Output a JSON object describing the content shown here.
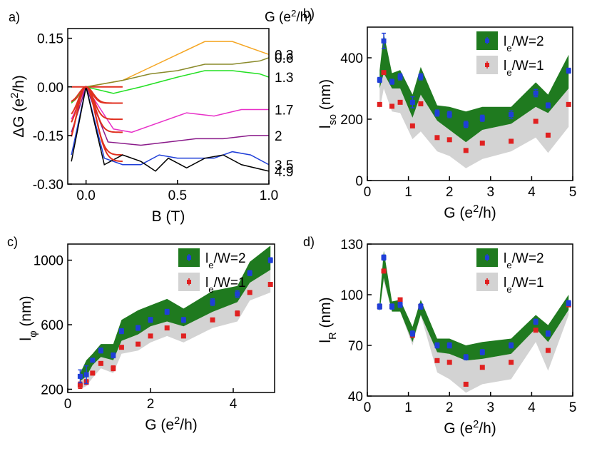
{
  "chart_data": [
    {
      "panel": "a",
      "panel_label": "a)",
      "type": "line",
      "xlabel": "B (T)",
      "ylabel": "ΔG (e2/h)",
      "series_header": "G (e2/h)",
      "xlim": [
        -0.1,
        1.0
      ],
      "ylim": [
        -0.3,
        0.18
      ],
      "xticks": [
        "0.0",
        "0.5",
        "1.0"
      ],
      "xtick_values": [
        0.0,
        0.5,
        1.0
      ],
      "yticks": [
        "0.15",
        "0.00",
        "-0.15",
        "-0.30"
      ],
      "ytick_values": [
        0.15,
        0.0,
        -0.15,
        -0.3
      ],
      "series": [
        {
          "name": "0.3",
          "color": "#f5a623",
          "x": [
            -0.08,
            0.0,
            0.2,
            0.35,
            0.5,
            0.65,
            0.8,
            0.95,
            1.0
          ],
          "y": [
            0.0,
            0.0,
            0.02,
            0.06,
            0.1,
            0.14,
            0.14,
            0.11,
            0.1
          ]
        },
        {
          "name": "0.6",
          "color": "#8a8a2a",
          "x": [
            -0.08,
            0.0,
            0.2,
            0.35,
            0.5,
            0.65,
            0.8,
            0.95,
            1.0
          ],
          "y": [
            -0.05,
            0.0,
            0.02,
            0.04,
            0.05,
            0.07,
            0.07,
            0.08,
            0.09
          ]
        },
        {
          "name": "1.3",
          "color": "#22e022",
          "x": [
            -0.08,
            0.0,
            0.15,
            0.3,
            0.5,
            0.65,
            0.8,
            0.95,
            1.0
          ],
          "y": [
            -0.05,
            0.0,
            -0.02,
            0.0,
            0.03,
            0.05,
            0.05,
            0.04,
            0.03
          ]
        },
        {
          "name": "1.7",
          "color": "#e830c8",
          "x": [
            -0.08,
            0.0,
            0.15,
            0.25,
            0.4,
            0.55,
            0.7,
            0.85,
            1.0
          ],
          "y": [
            -0.1,
            0.0,
            -0.13,
            -0.14,
            -0.11,
            -0.08,
            -0.09,
            -0.07,
            -0.07
          ]
        },
        {
          "name": "2",
          "color": "#8a1a8a",
          "x": [
            -0.08,
            0.0,
            0.12,
            0.3,
            0.45,
            0.6,
            0.75,
            0.9,
            1.0
          ],
          "y": [
            -0.14,
            0.0,
            -0.17,
            -0.18,
            -0.17,
            -0.16,
            -0.16,
            -0.15,
            -0.15
          ]
        },
        {
          "name": "3.5",
          "color": "#1f3fd8",
          "x": [
            -0.08,
            0.0,
            0.1,
            0.2,
            0.3,
            0.4,
            0.5,
            0.6,
            0.7,
            0.8,
            0.9,
            1.0
          ],
          "y": [
            -0.21,
            0.0,
            -0.22,
            -0.24,
            -0.24,
            -0.21,
            -0.22,
            -0.22,
            -0.22,
            -0.2,
            -0.21,
            -0.24
          ]
        },
        {
          "name": "4.9",
          "color": "#000000",
          "x": [
            -0.08,
            0.0,
            0.1,
            0.2,
            0.3,
            0.38,
            0.45,
            0.55,
            0.65,
            0.75,
            0.85,
            1.0
          ],
          "y": [
            -0.23,
            0.0,
            -0.24,
            -0.21,
            -0.23,
            -0.26,
            -0.22,
            -0.25,
            -0.22,
            -0.21,
            -0.24,
            -0.26
          ]
        }
      ],
      "fit_color": "#e03020"
    },
    {
      "panel": "b",
      "panel_label": "b)",
      "type": "scatter",
      "xlabel": "G (e2/h)",
      "ylabel": "lso (nm)",
      "xlim": [
        0,
        5
      ],
      "ylim": [
        0,
        500
      ],
      "xticks": [
        "0",
        "1",
        "2",
        "3",
        "4",
        "5"
      ],
      "xtick_values": [
        0,
        1,
        2,
        3,
        4,
        5
      ],
      "yticks": [
        "0",
        "200",
        "400"
      ],
      "ytick_values": [
        0,
        200,
        400
      ],
      "legend": [
        "le/W=2",
        "le/W=1"
      ],
      "x": [
        0.3,
        0.4,
        0.6,
        0.8,
        1.1,
        1.3,
        1.7,
        2.0,
        2.4,
        2.8,
        3.5,
        4.1,
        4.4,
        4.9
      ],
      "series": [
        {
          "name": "le/W=2",
          "values": [
            328,
            455,
            322,
            338,
            255,
            338,
            220,
            215,
            183,
            203,
            215,
            285,
            245,
            358
          ],
          "errors": [
            8,
            25,
            8,
            10,
            18,
            10,
            10,
            10,
            10,
            10,
            12,
            12,
            8,
            8
          ],
          "band_low": [
            300,
            350,
            300,
            300,
            205,
            280,
            195,
            165,
            125,
            165,
            185,
            240,
            220,
            300
          ],
          "band_high": [
            360,
            480,
            350,
            360,
            280,
            370,
            245,
            240,
            225,
            240,
            240,
            320,
            280,
            410
          ]
        },
        {
          "name": "le/W=1",
          "values": [
            248,
            352,
            242,
            255,
            178,
            250,
            140,
            133,
            98,
            122,
            128,
            193,
            148,
            248
          ],
          "errors": [
            5,
            5,
            5,
            5,
            5,
            5,
            5,
            5,
            5,
            5,
            5,
            5,
            5,
            5
          ],
          "band_low": [
            230,
            300,
            225,
            220,
            135,
            160,
            95,
            80,
            40,
            70,
            95,
            140,
            90,
            175
          ]
        }
      ]
    },
    {
      "panel": "c",
      "panel_label": "c)",
      "type": "scatter",
      "xlabel": "G (e2/h)",
      "ylabel": "lφ (nm)",
      "xlim": [
        0,
        5
      ],
      "ylim": [
        180,
        1100
      ],
      "xticks": [
        "0",
        "2",
        "4"
      ],
      "xtick_values": [
        0,
        2,
        4
      ],
      "yticks": [
        "200",
        "600",
        "1000"
      ],
      "ytick_values": [
        200,
        600,
        1000
      ],
      "legend": [
        "le/W=2",
        "le/W=1"
      ],
      "x": [
        0.3,
        0.45,
        0.6,
        0.8,
        1.1,
        1.3,
        1.7,
        2.0,
        2.4,
        2.8,
        3.5,
        4.1,
        4.4,
        4.9
      ],
      "series": [
        {
          "name": "le/W=2",
          "values": [
            280,
            290,
            380,
            440,
            410,
            560,
            580,
            630,
            680,
            630,
            740,
            790,
            920,
            1000
          ],
          "errors": [
            40,
            55,
            10,
            15,
            15,
            15,
            15,
            15,
            15,
            15,
            20,
            20,
            15,
            15
          ],
          "band_low": [
            250,
            280,
            350,
            400,
            380,
            500,
            540,
            590,
            620,
            590,
            680,
            740,
            860,
            940
          ],
          "band_high": [
            300,
            380,
            420,
            480,
            480,
            630,
            690,
            720,
            760,
            700,
            810,
            840,
            990,
            1090
          ]
        },
        {
          "name": "le/W=1",
          "values": [
            225,
            245,
            300,
            360,
            330,
            460,
            480,
            530,
            580,
            530,
            630,
            670,
            800,
            850
          ],
          "errors": [
            20,
            15,
            10,
            10,
            15,
            10,
            10,
            10,
            10,
            10,
            10,
            15,
            10,
            10
          ],
          "band_low": [
            200,
            220,
            270,
            330,
            300,
            420,
            440,
            490,
            530,
            490,
            580,
            620,
            750,
            800
          ]
        }
      ]
    },
    {
      "panel": "d",
      "panel_label": "d)",
      "type": "scatter",
      "xlabel": "G (e2/h)",
      "ylabel": "lR (nm)",
      "xlim": [
        0,
        5
      ],
      "ylim": [
        40,
        130
      ],
      "xticks": [
        "0",
        "1",
        "2",
        "3",
        "4",
        "5"
      ],
      "xtick_values": [
        0,
        1,
        2,
        3,
        4,
        5
      ],
      "yticks": [
        "40",
        "70",
        "100",
        "130"
      ],
      "ytick_values": [
        40,
        70,
        100,
        130
      ],
      "legend": [
        "le/W=2",
        "le/W=1"
      ],
      "x": [
        0.3,
        0.4,
        0.6,
        0.8,
        1.1,
        1.3,
        1.7,
        2.0,
        2.4,
        2.8,
        3.5,
        4.1,
        4.4,
        4.9
      ],
      "series": [
        {
          "name": "le/W=2",
          "values": [
            93,
            122,
            93,
            94,
            77,
            93,
            70,
            70,
            63,
            66,
            70,
            84,
            77,
            95
          ],
          "errors": [
            1.5,
            1.5,
            1.5,
            1.5,
            1.5,
            1.5,
            1.5,
            1.5,
            1.5,
            1.5,
            1.5,
            1.5,
            1.5,
            1.5
          ],
          "band_low": [
            90,
            110,
            90,
            90,
            72,
            88,
            66,
            65,
            61,
            62,
            65,
            80,
            72,
            91
          ],
          "band_high": [
            96,
            126,
            96,
            97,
            81,
            97,
            74,
            74,
            70,
            72,
            74,
            88,
            82,
            100
          ]
        },
        {
          "name": "le/W=1",
          "values": [
            93,
            114,
            93,
            97,
            76,
            93,
            61,
            60,
            47,
            57,
            60,
            79,
            67,
            94
          ],
          "errors": [
            1,
            1,
            1,
            1,
            1,
            1,
            1,
            1,
            1,
            1,
            1,
            1,
            1,
            1
          ],
          "band_low": [
            90,
            108,
            90,
            90,
            70,
            88,
            54,
            50,
            42,
            47,
            50,
            72,
            55,
            88
          ]
        }
      ]
    }
  ]
}
